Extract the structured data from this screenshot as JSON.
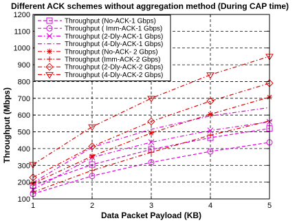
{
  "chart_data": {
    "type": "line",
    "title": "Different ACK schemes without aggregation method (During CAP time)",
    "xlabel": "Data Packet Payload (KB)",
    "ylabel": "Throughput (Mbps)",
    "x": [
      1,
      2,
      3,
      4,
      5
    ],
    "xlim": [
      1,
      5
    ],
    "ylim": [
      100,
      1200
    ],
    "xticks": [
      1,
      2,
      3,
      4,
      5
    ],
    "yticks": [
      100,
      200,
      300,
      400,
      500,
      600,
      700,
      800,
      900,
      1000,
      1100,
      1200
    ],
    "grid": true,
    "legend_position": "top-left",
    "series": [
      {
        "name": "Throughput (No-ACK-1 Gbps)",
        "color": "#e000e0",
        "dash": "dashed",
        "marker": "square",
        "values": [
          180,
          305,
          395,
          465,
          520
        ]
      },
      {
        "name": "Throughput ( Imm-ACK-1 Gbps)",
        "color": "#e000e0",
        "dash": "dashed",
        "marker": "circle",
        "values": [
          130,
          237,
          318,
          383,
          437
        ]
      },
      {
        "name": "Throughput (2-Dly-ACK-1 Gbps)",
        "color": "#e000e0",
        "dash": "dashdot",
        "marker": "x",
        "values": [
          155,
          348,
          438,
          508,
          560
        ]
      },
      {
        "name": "Throughput (4-Dly-ACK-1 Gbps)",
        "color": "#e000e0",
        "dash": "dashdot",
        "marker": "none",
        "values": [
          197,
          408,
          515,
          595,
          645
        ]
      },
      {
        "name": "Throughput (No-ACK- 2 Gbps)",
        "color": "#e00000",
        "dash": "dashdot",
        "marker": "star",
        "values": [
          192,
          355,
          493,
          605,
          707
        ]
      },
      {
        "name": "Throughput (Imm-ACK-2 Gbps)",
        "color": "#e00000",
        "dash": "dashdot",
        "marker": "plus",
        "values": [
          140,
          270,
          378,
          480,
          565
        ]
      },
      {
        "name": "Throughput (2-Dly-ACK-2 Gbps)",
        "color": "#e00000",
        "dash": "dashdot",
        "marker": "diamond",
        "values": [
          228,
          413,
          562,
          683,
          790
        ]
      },
      {
        "name": "Throughput (4-Dly-ACK-2 Gbps)",
        "color": "#e00000",
        "dash": "dashdot",
        "marker": "triangle-down",
        "values": [
          305,
          530,
          700,
          840,
          950
        ]
      }
    ]
  }
}
